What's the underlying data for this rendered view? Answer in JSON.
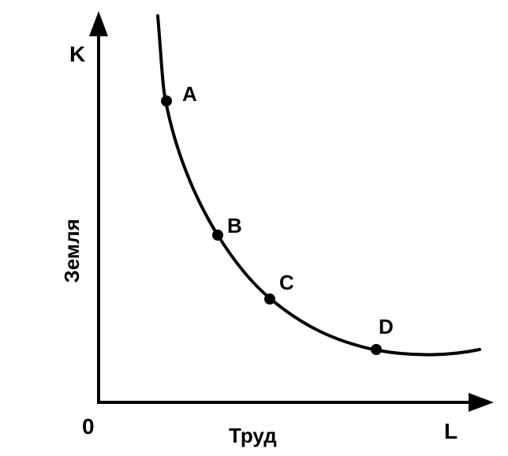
{
  "diagram": {
    "axes": {
      "origin_label": "0",
      "y_axis_letter": "K",
      "x_axis_letter": "L",
      "y_axis_title": "Земля",
      "x_axis_title": "Труд"
    },
    "points": [
      {
        "id": "a",
        "label": "A"
      },
      {
        "id": "b",
        "label": "B"
      },
      {
        "id": "c",
        "label": "C"
      },
      {
        "id": "d",
        "label": "D"
      }
    ],
    "colors": {
      "ink": "#000000",
      "background": "#ffffff"
    }
  }
}
